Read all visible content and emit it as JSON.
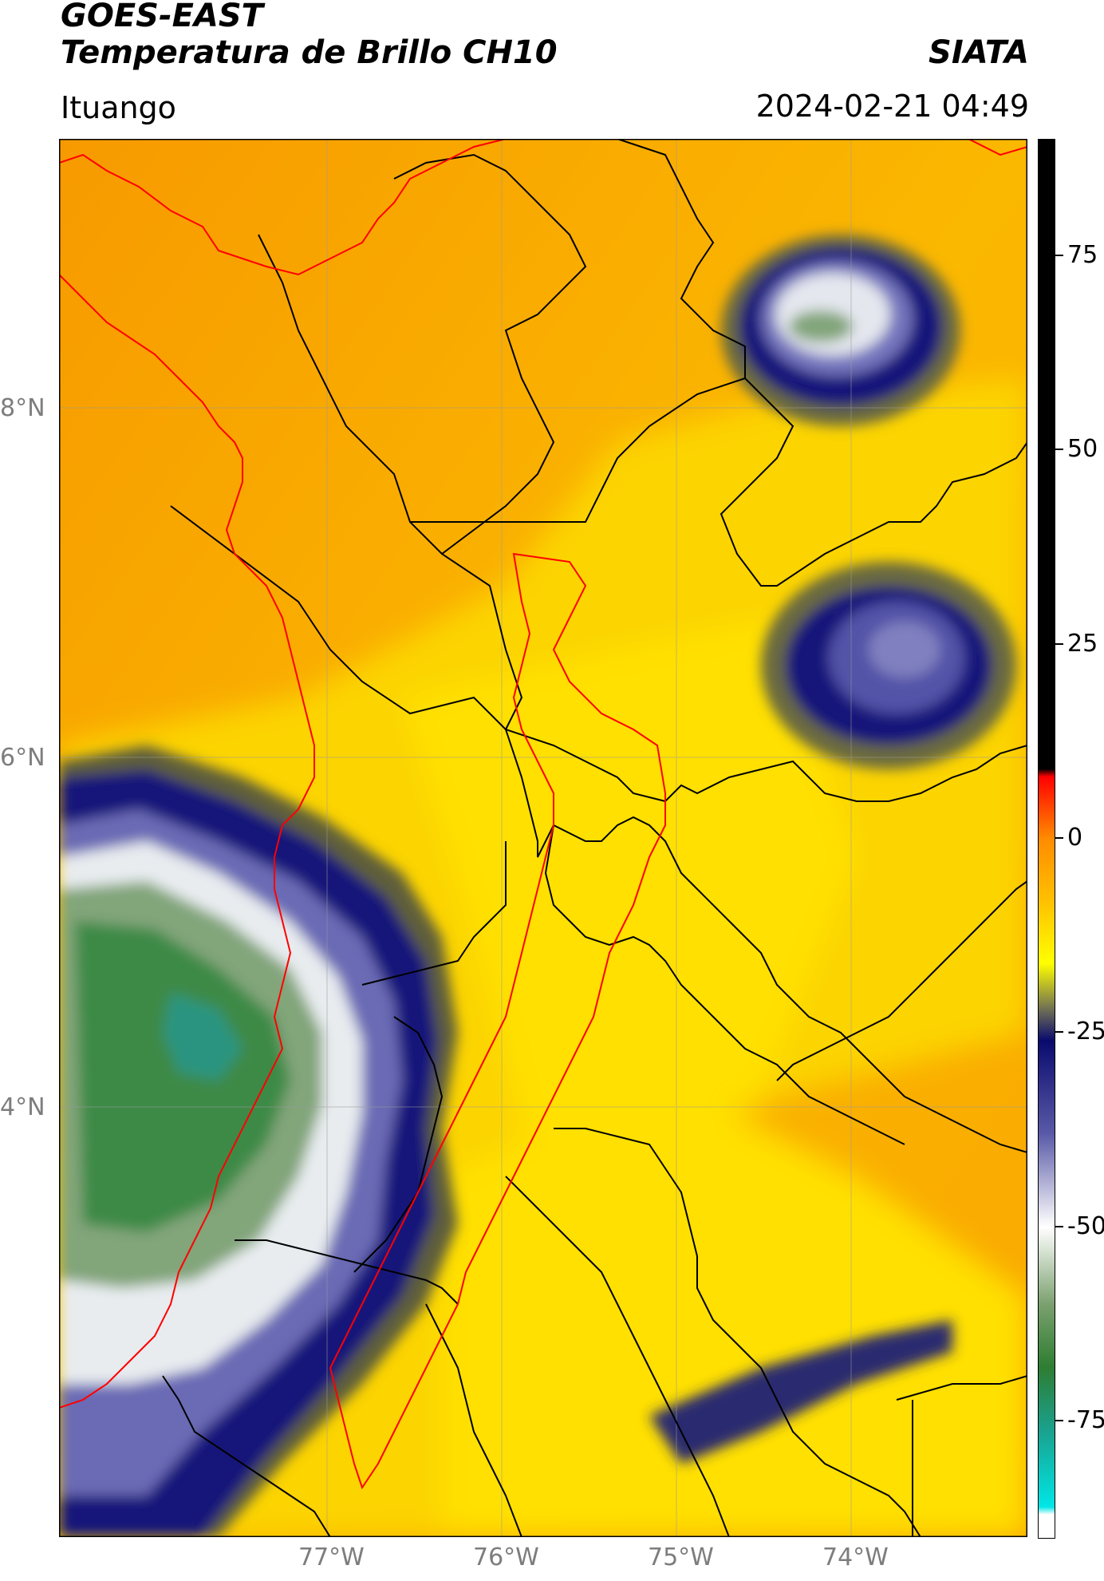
{
  "header": {
    "title_line1": "GOES-EAST",
    "title_line2": "Temperatura de Brillo CH10",
    "org": "SIATA",
    "location": "Ituango",
    "timestamp": "2024-02-21 04:49"
  },
  "map": {
    "lat_labels": [
      "8°N",
      "6°N",
      "4°N"
    ],
    "lon_labels": [
      "77°W",
      "76°W",
      "75°W",
      "74°W"
    ],
    "gridlines": true,
    "colors": {
      "background_field": "#f7a400",
      "warm_field": "#ffd800",
      "cold_cloud": "#1a1a80",
      "coldest_cloud": "#2e7d32",
      "country_border": "#ff0000",
      "admin_border": "#000000"
    }
  },
  "colorbar": {
    "ticks": [
      "75",
      "50",
      "25",
      "0",
      "-25",
      "-50",
      "-75"
    ],
    "tick_values": [
      75,
      50,
      25,
      0,
      -25,
      -50,
      -75
    ],
    "range": [
      -90,
      90
    ],
    "stops": [
      {
        "value": 90,
        "color": "#000000"
      },
      {
        "value": 9,
        "color": "#000000"
      },
      {
        "value": 8,
        "color": "#ff0000"
      },
      {
        "value": 0,
        "color": "#ff8c00"
      },
      {
        "value": -8,
        "color": "#ffc000"
      },
      {
        "value": -16,
        "color": "#ffff00"
      },
      {
        "value": -22,
        "color": "#6e6e55"
      },
      {
        "value": -26,
        "color": "#0a0a6e"
      },
      {
        "value": -38,
        "color": "#5a5aa8"
      },
      {
        "value": -50,
        "color": "#ffffff"
      },
      {
        "value": -60,
        "color": "#7aa06e"
      },
      {
        "value": -68,
        "color": "#2e7d32"
      },
      {
        "value": -76,
        "color": "#1aa08c"
      },
      {
        "value": -86,
        "color": "#00e6e6"
      },
      {
        "value": -87,
        "color": "#ffffff"
      },
      {
        "value": -90,
        "color": "#ffffff"
      }
    ]
  }
}
